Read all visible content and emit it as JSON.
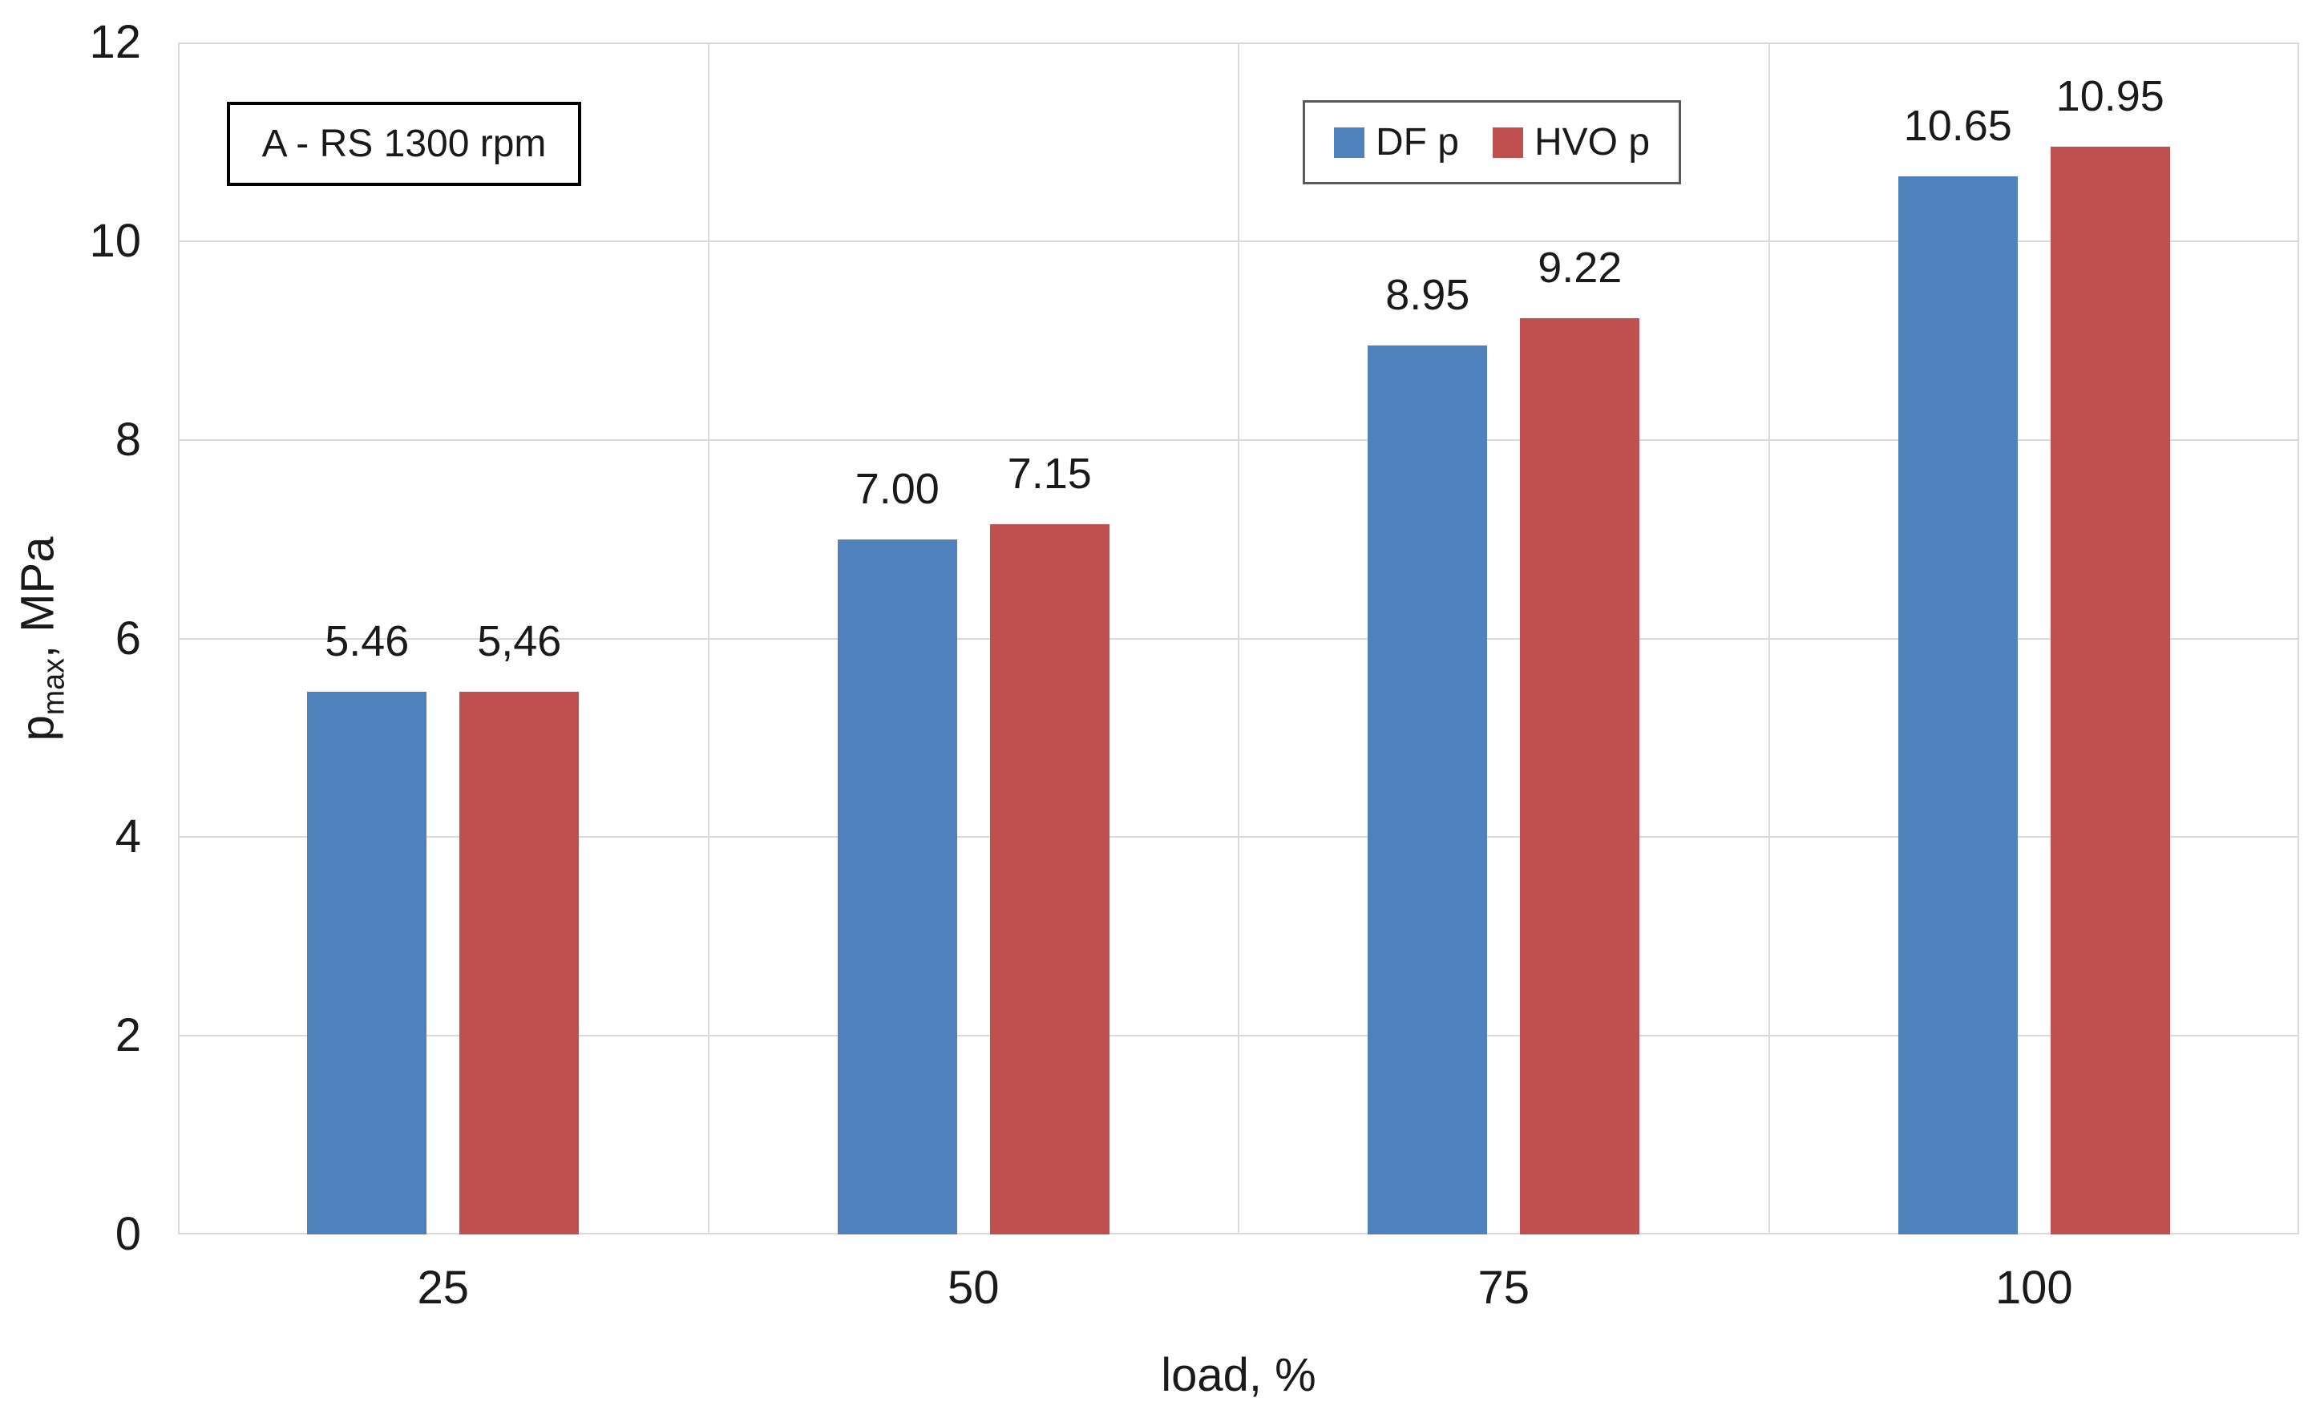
{
  "chart_data": {
    "type": "bar",
    "annotation": "A - RS 1300 rpm",
    "categories": [
      "25",
      "50",
      "75",
      "100"
    ],
    "series": [
      {
        "name": "DF p",
        "color": "#4F81BD",
        "values": [
          5.46,
          7.0,
          8.95,
          10.65
        ],
        "labels": [
          "5.46",
          "7.00",
          "8.95",
          "10.65"
        ]
      },
      {
        "name": "HVO p",
        "color": "#C0504D",
        "values": [
          5.46,
          7.15,
          9.22,
          10.95
        ],
        "labels": [
          "5,46",
          "7.15",
          "9.22",
          "10.95"
        ]
      }
    ],
    "xlabel": "load, %",
    "ylabel_base": "p",
    "ylabel_sub": "max",
    "ylabel_rest": ", MPa",
    "ylim": [
      0,
      12
    ],
    "yticks": [
      "0",
      "2",
      "4",
      "6",
      "8",
      "10",
      "12"
    ],
    "grid": true,
    "legend_position": "top-center"
  },
  "colors": {
    "grid": "#d9d9d9",
    "text": "#1a1a1a",
    "series_blue": "#4F81BD",
    "series_red": "#C0504D",
    "annotation_border": "#000000",
    "legend_border": "#595959",
    "background": "#ffffff"
  }
}
